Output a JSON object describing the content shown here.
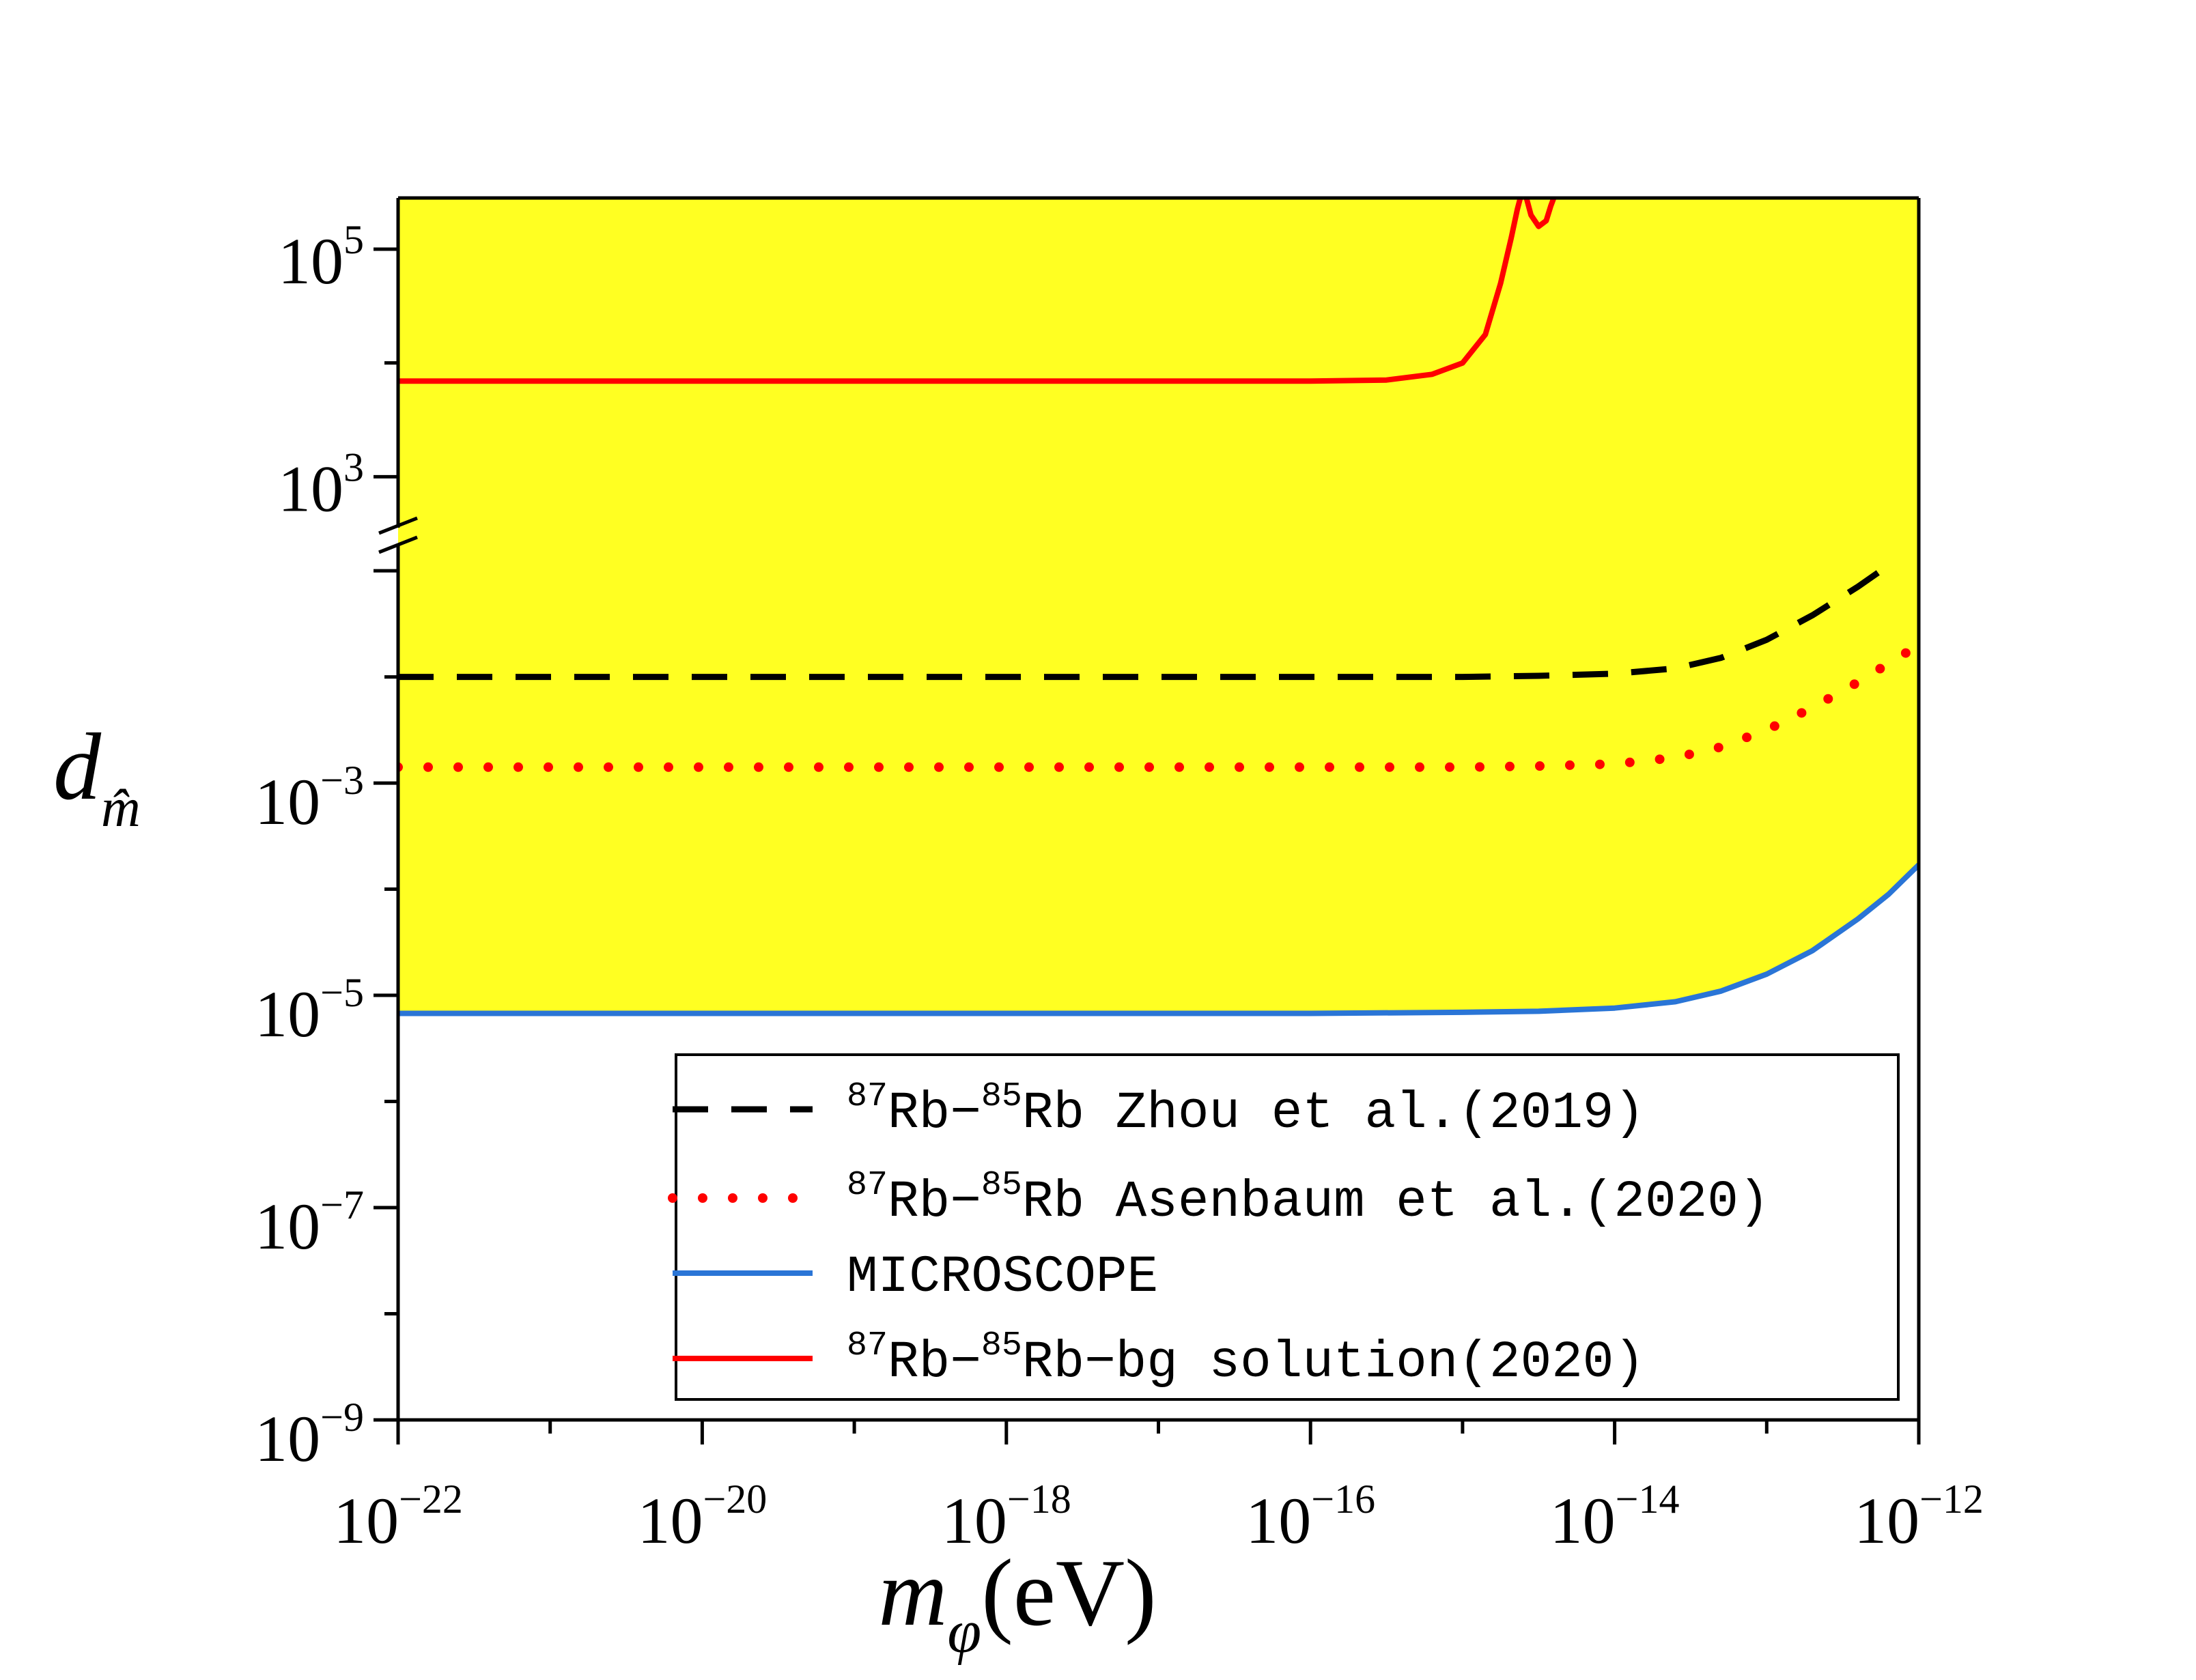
{
  "chart_data": {
    "type": "line",
    "xlabel": {
      "main": "m",
      "sub": "φ",
      "unit": "(eV)"
    },
    "ylabel": {
      "main": "d",
      "sub": "m̂"
    },
    "x_scale": "log",
    "y_scale": "log-broken",
    "xlim_log10": [
      -22,
      -12
    ],
    "x_ticks": [
      {
        "base": "10",
        "exp": "−22",
        "log": -22
      },
      {
        "base": "10",
        "exp": "−20",
        "log": -20
      },
      {
        "base": "10",
        "exp": "−18",
        "log": -18
      },
      {
        "base": "10",
        "exp": "−16",
        "log": -16
      },
      {
        "base": "10",
        "exp": "−14",
        "log": -14
      },
      {
        "base": "10",
        "exp": "−12",
        "log": -12
      }
    ],
    "y_lower_ticks": [
      {
        "base": "10",
        "exp": "−9",
        "log": -9
      },
      {
        "base": "10",
        "exp": "−7",
        "log": -7
      },
      {
        "base": "10",
        "exp": "−5",
        "log": -5
      },
      {
        "base": "10",
        "exp": "−3",
        "log": -3
      }
    ],
    "y_upper_ticks": [
      {
        "base": "10",
        "exp": "3",
        "log": 3
      },
      {
        "base": "10",
        "exp": "5",
        "log": 5
      }
    ],
    "y_lower_range_log10": [
      -9,
      -0.8
    ],
    "y_upper_range_log10": [
      2.6,
      5.45
    ],
    "shaded_region": {
      "color": "#ffff22",
      "between": [
        "MICROSCOPE",
        "top"
      ]
    },
    "series": [
      {
        "name": "Zhou",
        "style": "dashed",
        "color": "#000000",
        "x_log": [
          -22,
          -20,
          -18,
          -16,
          -15,
          -14.5,
          -14,
          -13.6,
          -13.3,
          -13,
          -12.7,
          -12.4,
          -12.2
        ],
        "y_log": [
          -2.0,
          -2.0,
          -2.0,
          -2.0,
          -2.0,
          -1.99,
          -1.97,
          -1.92,
          -1.82,
          -1.65,
          -1.42,
          -1.15,
          -0.95
        ]
      },
      {
        "name": "Asenbaum",
        "style": "dotted",
        "color": "#ff0000",
        "x_log": [
          -22,
          -20,
          -18,
          -16,
          -15,
          -14.5,
          -14,
          -13.6,
          -13.3,
          -13,
          -12.7,
          -12.4,
          -12
        ],
        "y_log": [
          -2.85,
          -2.85,
          -2.85,
          -2.85,
          -2.85,
          -2.84,
          -2.82,
          -2.76,
          -2.66,
          -2.5,
          -2.29,
          -2.05,
          -1.7
        ]
      },
      {
        "name": "MICROSCOPE",
        "style": "solid",
        "color": "#2a75d6",
        "x_log": [
          -22,
          -20,
          -18,
          -16,
          -15,
          -14.5,
          -14,
          -13.6,
          -13.3,
          -13,
          -12.7,
          -12.4,
          -12.2,
          -12
        ],
        "y_log": [
          -5.17,
          -5.17,
          -5.17,
          -5.17,
          -5.16,
          -5.15,
          -5.12,
          -5.06,
          -4.96,
          -4.8,
          -4.58,
          -4.28,
          -4.05,
          -3.77
        ]
      },
      {
        "name": "bg",
        "style": "solid",
        "color": "#ff0000",
        "x_log": [
          -22,
          -20,
          -18,
          -16,
          -15.5,
          -15.2,
          -15.0,
          -14.85,
          -14.75,
          -14.68,
          -14.64,
          -14.62
        ],
        "y_log": [
          3.84,
          3.84,
          3.84,
          3.84,
          3.85,
          3.9,
          4.0,
          4.25,
          4.7,
          5.1,
          5.35,
          5.45
        ],
        "wiggle_x_log": [
          -14.58,
          -14.55,
          -14.5,
          -14.45,
          -14.42,
          -14.4
        ],
        "wiggle_y_log": [
          5.45,
          5.3,
          5.2,
          5.25,
          5.38,
          5.45
        ]
      }
    ],
    "legend": {
      "placement": "bottom-right",
      "entries": [
        {
          "key": "Zhou",
          "iso1": "87",
          "el1": "Rb−",
          "iso2": "85",
          "el2": "Rb",
          "rest": " Zhou et al.(2019)"
        },
        {
          "key": "Asenbaum",
          "iso1": "87",
          "el1": "Rb−",
          "iso2": "85",
          "el2": "Rb",
          "rest": " Asenbaum et al.(2020)"
        },
        {
          "key": "MICROSCOPE",
          "plain": "MICROSCOPE"
        },
        {
          "key": "bg",
          "iso1": "87",
          "el1": "Rb−",
          "iso2": "85",
          "el2": "Rb",
          "rest": "−bg solution(2020)"
        }
      ]
    }
  }
}
